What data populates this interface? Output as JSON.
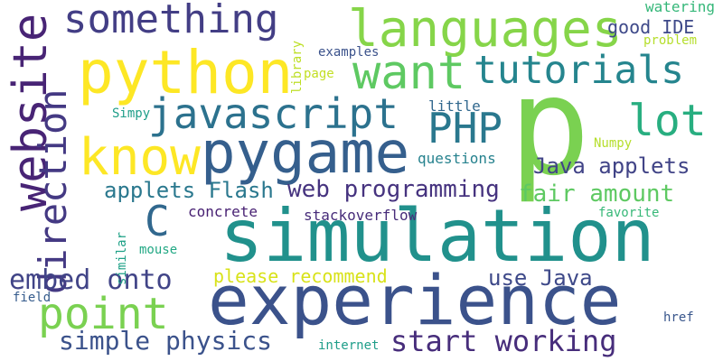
{
  "words": [
    {
      "key": "simulation",
      "text": "simulation",
      "color": "#21918c"
    },
    {
      "key": "experience",
      "text": "experience",
      "color": "#3b528b"
    },
    {
      "key": "p",
      "text": "p",
      "color": "#7ad151"
    },
    {
      "key": "python",
      "text": "python",
      "color": "#fde725"
    },
    {
      "key": "pygame",
      "text": "pygame",
      "color": "#355f8d"
    },
    {
      "key": "languages",
      "text": "languages",
      "color": "#86d549"
    },
    {
      "key": "know",
      "text": "know",
      "color": "#fde725"
    },
    {
      "key": "website",
      "text": "website",
      "color": "#482475"
    },
    {
      "key": "direction",
      "text": "direction",
      "color": "#443983"
    },
    {
      "key": "want",
      "text": "want",
      "color": "#5ec962"
    },
    {
      "key": "javascript",
      "text": "javascript",
      "color": "#2c728e"
    },
    {
      "key": "something",
      "text": "something",
      "color": "#433e85"
    },
    {
      "key": "tutorials",
      "text": "tutorials",
      "color": "#25858e"
    },
    {
      "key": "lot",
      "text": "lot",
      "color": "#28ae80"
    },
    {
      "key": "php",
      "text": "PHP",
      "color": "#2a788e"
    },
    {
      "key": "point",
      "text": "point",
      "color": "#7ad151"
    },
    {
      "key": "c",
      "text": "C",
      "color": "#31688e"
    },
    {
      "key": "embed-onto",
      "text": "embed onto",
      "color": "#414487"
    },
    {
      "key": "start-working",
      "text": "start working",
      "color": "#472d7b"
    },
    {
      "key": "simple-physics",
      "text": "simple physics",
      "color": "#3b528b"
    },
    {
      "key": "web-programming",
      "text": "web programming",
      "color": "#46337f"
    },
    {
      "key": "applets-flash",
      "text": "applets Flash",
      "color": "#2a788e"
    },
    {
      "key": "java-applets",
      "text": "Java applets",
      "color": "#414487"
    },
    {
      "key": "fair-amount",
      "text": "fair amount",
      "color": "#5ec962"
    },
    {
      "key": "use-java",
      "text": "use Java",
      "color": "#3e4989"
    },
    {
      "key": "please-recommend",
      "text": "please recommend",
      "color": "#d8e219"
    },
    {
      "key": "good-ide",
      "text": "good IDE",
      "color": "#3e4989"
    },
    {
      "key": "stackoverflow",
      "text": "stackoverflow",
      "color": "#472c7a"
    },
    {
      "key": "concrete",
      "text": "concrete",
      "color": "#482173"
    },
    {
      "key": "little",
      "text": "little",
      "color": "#31688e"
    },
    {
      "key": "questions",
      "text": "questions",
      "color": "#26828e"
    },
    {
      "key": "watering",
      "text": "watering",
      "color": "#35b779"
    },
    {
      "key": "problem",
      "text": "problem",
      "color": "#b5de2b"
    },
    {
      "key": "numpy",
      "text": "Numpy",
      "color": "#b5de2b"
    },
    {
      "key": "examples",
      "text": "examples",
      "color": "#3b528b"
    },
    {
      "key": "simpy",
      "text": "Simpy",
      "color": "#1f9e89"
    },
    {
      "key": "page",
      "text": "page",
      "color": "#c2df23"
    },
    {
      "key": "library",
      "text": "library",
      "color": "#bddf26"
    },
    {
      "key": "similar",
      "text": "similar",
      "color": "#1fa187"
    },
    {
      "key": "mouse",
      "text": "mouse",
      "color": "#22a884"
    },
    {
      "key": "favorite",
      "text": "favorite",
      "color": "#37b878"
    },
    {
      "key": "field",
      "text": "field",
      "color": "#365c8d"
    },
    {
      "key": "internet",
      "text": "internet",
      "color": "#1f9e89"
    },
    {
      "key": "href",
      "text": "href",
      "color": "#39568c"
    }
  ]
}
